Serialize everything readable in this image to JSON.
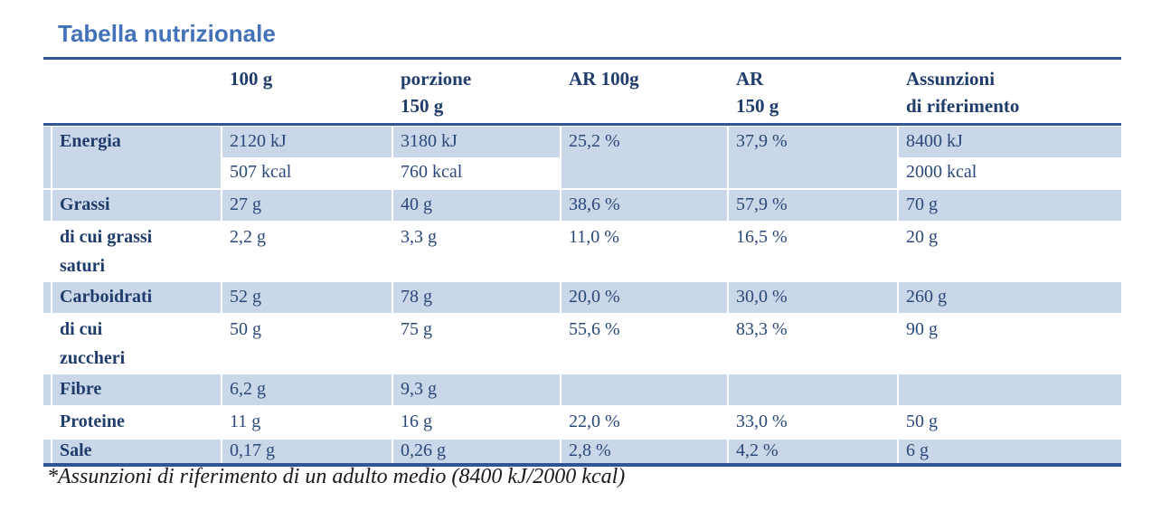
{
  "title": "Tabella nutrizionale",
  "footnote": "*Assunzioni di riferimento di un adulto medio (8400 kJ/2000 kcal)",
  "colors": {
    "title_blue": "#4472B8",
    "header_text": "#1F3C6B",
    "value_text": "#2A4878",
    "band": "#CAD7E9",
    "rule": "#2F5597",
    "background": "#FFFFFF"
  },
  "table": {
    "headers": [
      "",
      "100 g",
      "porzione\n150 g",
      "AR 100g",
      "AR\n150 g",
      "Assunzioni\ndi riferimento"
    ],
    "rows": [
      {
        "label": "Energia",
        "values": [
          "2120 kJ",
          "3180 kJ",
          "25,2 %",
          "37,9 %",
          "8400 kJ"
        ],
        "values2": [
          "507 kcal",
          "760 kcal",
          "",
          "",
          "2000 kcal"
        ]
      },
      {
        "label": "Grassi",
        "values": [
          "27 g",
          "40 g",
          "38,6 %",
          "57,9 %",
          "70 g"
        ]
      },
      {
        "label": "di cui grassi\nsaturi",
        "values": [
          "2,2 g",
          "3,3 g",
          "11,0 %",
          "16,5 %",
          "20 g"
        ]
      },
      {
        "label": "Carboidrati",
        "values": [
          "52 g",
          "78 g",
          "20,0 %",
          "30,0 %",
          "260 g"
        ]
      },
      {
        "label": "di cui\nzuccheri",
        "values": [
          "50 g",
          "75 g",
          "55,6 %",
          "83,3 %",
          "90 g"
        ]
      },
      {
        "label": "Fibre",
        "values": [
          "6,2 g",
          "9,3 g",
          "",
          "",
          ""
        ]
      },
      {
        "label": "Proteine",
        "values": [
          "11 g",
          "16 g",
          "22,0 %",
          "33,0 %",
          "50 g"
        ]
      },
      {
        "label": "Sale",
        "values": [
          "0,17 g",
          "0,26 g",
          "2,8 %",
          "4,2 %",
          "6 g"
        ]
      }
    ]
  }
}
